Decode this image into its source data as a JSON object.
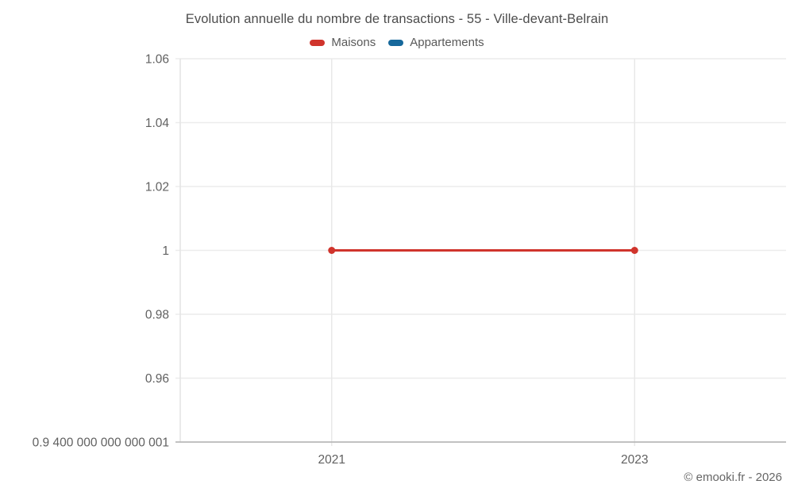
{
  "title": "Evolution annuelle du nombre de transactions - 55 - Ville-devant-Belrain",
  "footer": "© emooki.fr - 2026",
  "colors": {
    "maisons_red": "#d0342c",
    "appartements_blue": "#16689b",
    "title_text": "#4d4d4d",
    "tick_text": "#616161",
    "legend_text": "#595959",
    "h_gridline": "#ececec",
    "v_gridline": "#e8e8e8",
    "y_axis_line": "#e3e3e3",
    "x_axis_line": "#b0b0b0",
    "background": "#ffffff"
  },
  "chart_data": {
    "type": "line",
    "x": [
      2021,
      2023
    ],
    "series": [
      {
        "name": "Maisons",
        "color": "#d0342c",
        "values": [
          1,
          1
        ]
      },
      {
        "name": "Appartements",
        "color": "#16689b",
        "values": []
      }
    ],
    "title": "Evolution annuelle du nombre de transactions - 55 - Ville-devant-Belrain",
    "xlabel": "",
    "ylabel": "",
    "xlim": [
      2020,
      2024
    ],
    "ylim": [
      0.9400000000000001,
      1.06
    ],
    "x_ticks": [
      {
        "value": 2021,
        "label": "2021"
      },
      {
        "value": 2023,
        "label": "2023"
      }
    ],
    "y_ticks": [
      {
        "value": 0.9400000000000001,
        "label": "0.9 400 000 000 000 001"
      },
      {
        "value": 0.96,
        "label": "0.96"
      },
      {
        "value": 0.98,
        "label": "0.98"
      },
      {
        "value": 1,
        "label": "1"
      },
      {
        "value": 1.02,
        "label": "1.02"
      },
      {
        "value": 1.04,
        "label": "1.04"
      },
      {
        "value": 1.06,
        "label": "1.06"
      }
    ],
    "grid": true,
    "legend_position": "top"
  }
}
